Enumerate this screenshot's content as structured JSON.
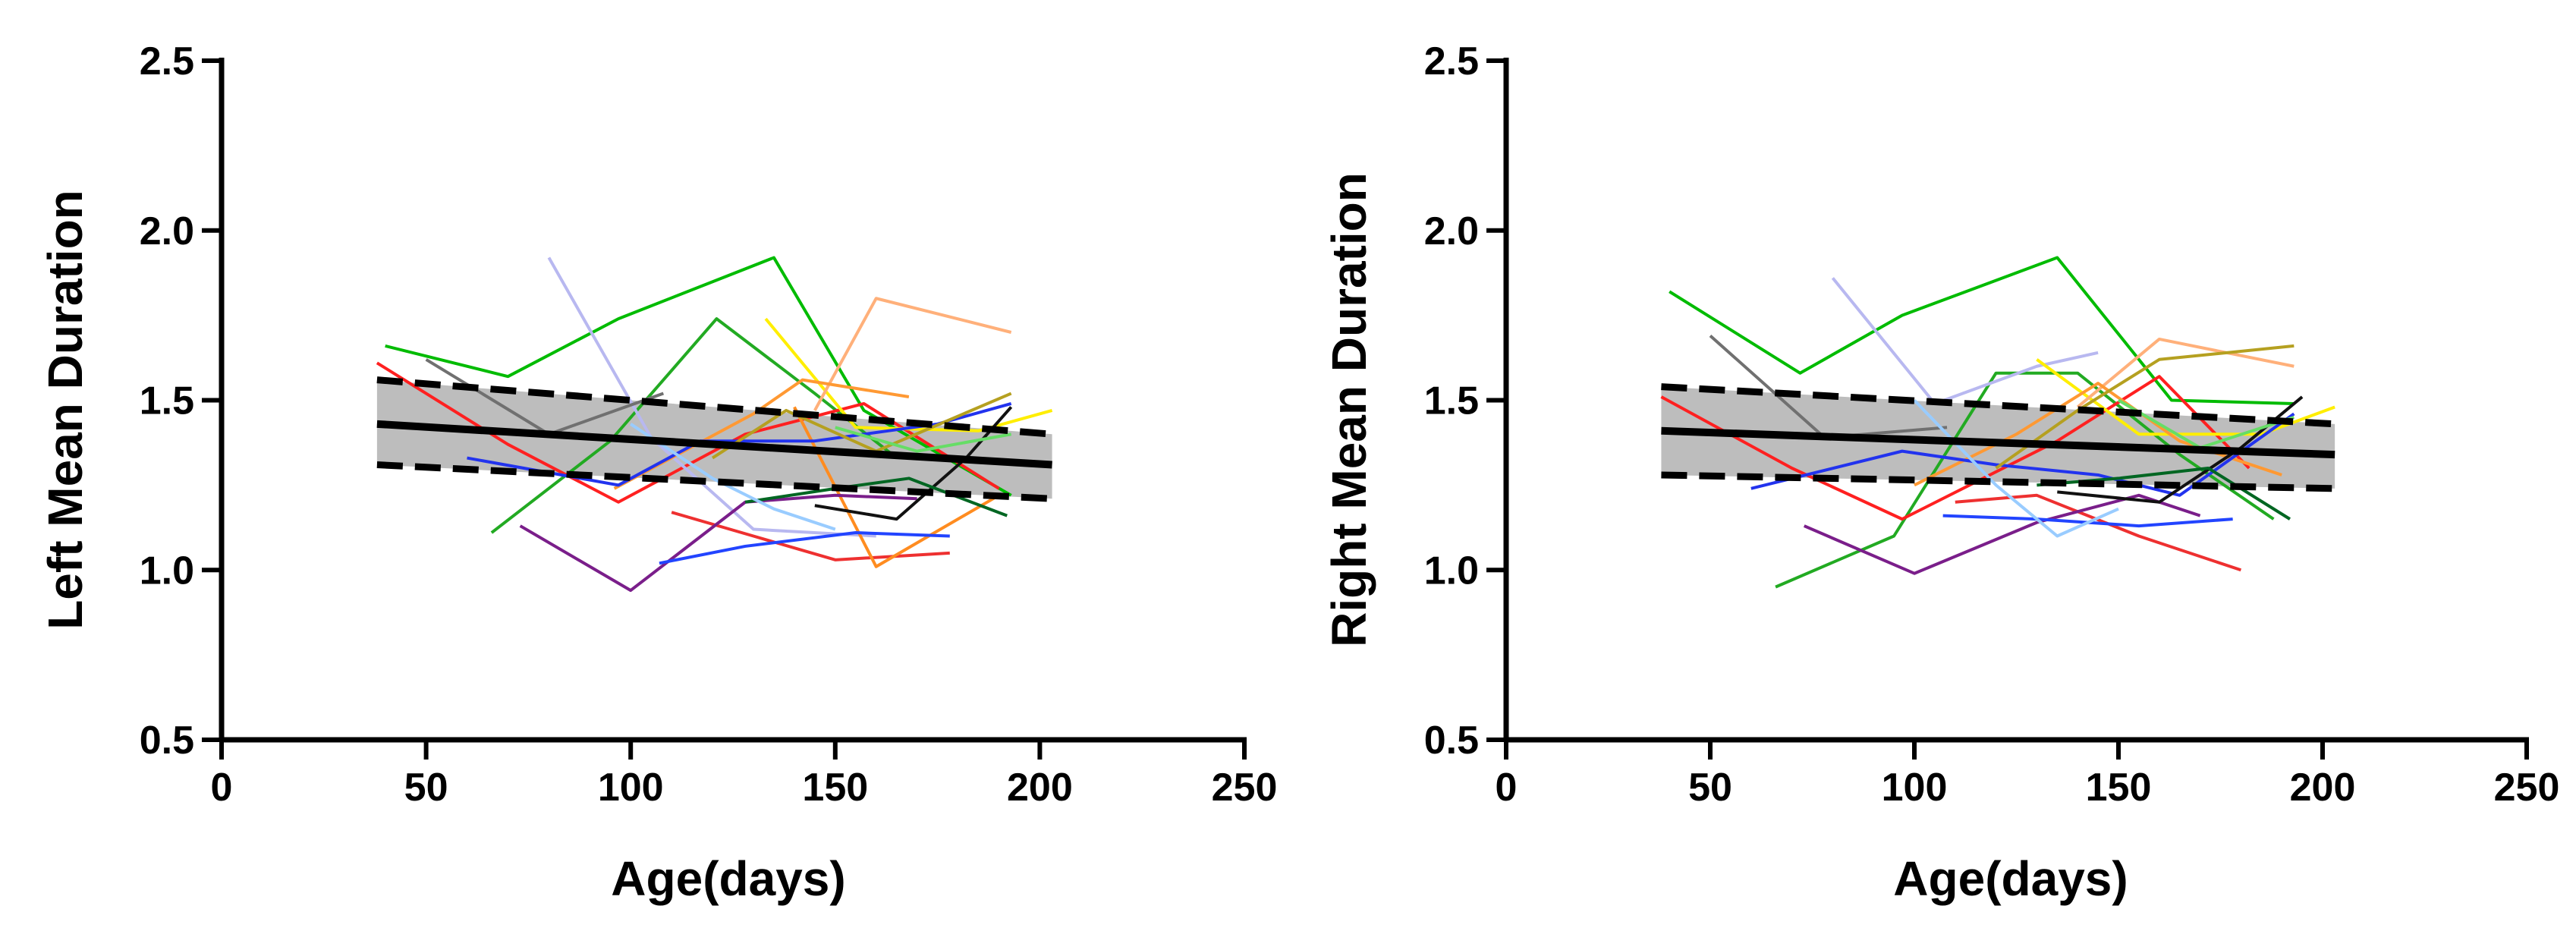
{
  "chart_data": [
    {
      "type": "line",
      "title": "",
      "xlabel": "Age(days)",
      "ylabel": "Left Mean Duration",
      "xlim": [
        0,
        250
      ],
      "ylim": [
        0.5,
        2.5
      ],
      "xticks": [
        "0",
        "50",
        "100",
        "150",
        "200",
        "250"
      ],
      "yticks": [
        "0.5",
        "1.0",
        "1.5",
        "2.0",
        "2.5"
      ],
      "regression": {
        "x": [
          38,
          203
        ],
        "fit": [
          1.43,
          1.31
        ],
        "ci_upper": [
          1.56,
          1.4
        ],
        "ci_lower": [
          1.31,
          1.21
        ]
      },
      "series": [
        {
          "name": "green",
          "color": "#00bb00",
          "x": [
            40,
            70,
            97,
            135,
            157,
            193
          ],
          "y": [
            1.66,
            1.57,
            1.74,
            1.92,
            1.47,
            1.22
          ]
        },
        {
          "name": "green-2",
          "color": "#22aa22",
          "x": [
            66,
            95,
            121,
            145,
            165
          ],
          "y": [
            1.11,
            1.38,
            1.74,
            1.52,
            1.33
          ]
        },
        {
          "name": "red",
          "color": "#ff2020",
          "x": [
            38,
            70,
            97,
            128,
            157,
            190
          ],
          "y": [
            1.61,
            1.37,
            1.2,
            1.4,
            1.49,
            1.24
          ]
        },
        {
          "name": "red-2",
          "color": "#ee3030",
          "x": [
            110,
            130,
            150,
            178
          ],
          "y": [
            1.17,
            1.1,
            1.03,
            1.05
          ]
        },
        {
          "name": "lavender",
          "color": "#b8b8f0",
          "x": [
            80,
            105,
            130,
            160
          ],
          "y": [
            1.92,
            1.39,
            1.12,
            1.1
          ]
        },
        {
          "name": "gray",
          "color": "#707070",
          "x": [
            50,
            80,
            108
          ],
          "y": [
            1.62,
            1.4,
            1.52
          ]
        },
        {
          "name": "yellow",
          "color": "#ffee00",
          "x": [
            133,
            155,
            185,
            203
          ],
          "y": [
            1.74,
            1.42,
            1.41,
            1.47
          ]
        },
        {
          "name": "peach",
          "color": "#ffb07a",
          "x": [
            145,
            160,
            193
          ],
          "y": [
            1.47,
            1.8,
            1.7
          ]
        },
        {
          "name": "orange",
          "color": "#ff9933",
          "x": [
            96,
            130,
            142,
            168
          ],
          "y": [
            1.24,
            1.46,
            1.56,
            1.51
          ]
        },
        {
          "name": "orange-2",
          "color": "#ff8c20",
          "x": [
            140,
            160,
            190
          ],
          "y": [
            1.48,
            1.01,
            1.22
          ]
        },
        {
          "name": "purple",
          "color": "#7a1e8a",
          "x": [
            73,
            100,
            128,
            150,
            170
          ],
          "y": [
            1.13,
            0.94,
            1.2,
            1.22,
            1.21
          ]
        },
        {
          "name": "blue",
          "color": "#2233ee",
          "x": [
            60,
            97,
            117,
            145,
            175,
            193
          ],
          "y": [
            1.33,
            1.25,
            1.38,
            1.38,
            1.43,
            1.49
          ]
        },
        {
          "name": "blue-2",
          "color": "#2244ff",
          "x": [
            107,
            128,
            155,
            178
          ],
          "y": [
            1.02,
            1.07,
            1.11,
            1.1
          ]
        },
        {
          "name": "black",
          "color": "#111111",
          "x": [
            145,
            165,
            182,
            193
          ],
          "y": [
            1.19,
            1.15,
            1.33,
            1.48
          ]
        },
        {
          "name": "dark-green",
          "color": "#006622",
          "x": [
            128,
            150,
            168,
            192
          ],
          "y": [
            1.2,
            1.24,
            1.27,
            1.16
          ]
        },
        {
          "name": "olive",
          "color": "#b5a020",
          "x": [
            120,
            138,
            160,
            193
          ],
          "y": [
            1.33,
            1.47,
            1.35,
            1.52
          ]
        },
        {
          "name": "light-blue",
          "color": "#99ccff",
          "x": [
            100,
            120,
            135,
            150
          ],
          "y": [
            1.43,
            1.27,
            1.18,
            1.12
          ]
        },
        {
          "name": "light-green",
          "color": "#66dd66",
          "x": [
            150,
            170,
            193
          ],
          "y": [
            1.42,
            1.35,
            1.4
          ]
        }
      ]
    },
    {
      "type": "line",
      "title": "",
      "xlabel": "Age(days)",
      "ylabel": "Right Mean Duration",
      "xlim": [
        0,
        250
      ],
      "ylim": [
        0.5,
        2.5
      ],
      "xticks": [
        "0",
        "50",
        "100",
        "150",
        "200",
        "250"
      ],
      "yticks": [
        "0.5",
        "1.0",
        "1.5",
        "2.0",
        "2.5"
      ],
      "regression": {
        "x": [
          38,
          203
        ],
        "fit": [
          1.41,
          1.34
        ],
        "ci_upper": [
          1.54,
          1.43
        ],
        "ci_lower": [
          1.28,
          1.24
        ]
      },
      "series": [
        {
          "name": "green",
          "color": "#00bb00",
          "x": [
            40,
            72,
            97,
            135,
            163,
            193
          ],
          "y": [
            1.82,
            1.58,
            1.75,
            1.92,
            1.5,
            1.49
          ]
        },
        {
          "name": "green-2",
          "color": "#22aa22",
          "x": [
            66,
            95,
            120,
            140,
            165,
            188
          ],
          "y": [
            0.95,
            1.1,
            1.58,
            1.58,
            1.34,
            1.15
          ]
        },
        {
          "name": "red",
          "color": "#ff2020",
          "x": [
            38,
            70,
            97,
            135,
            160,
            182
          ],
          "y": [
            1.51,
            1.3,
            1.15,
            1.38,
            1.57,
            1.3
          ]
        },
        {
          "name": "red-2",
          "color": "#ee3030",
          "x": [
            110,
            130,
            155,
            180
          ],
          "y": [
            1.2,
            1.22,
            1.1,
            1.0
          ]
        },
        {
          "name": "lavender",
          "color": "#b8b8f0",
          "x": [
            80,
            105,
            130,
            145
          ],
          "y": [
            1.86,
            1.49,
            1.6,
            1.64
          ]
        },
        {
          "name": "gray",
          "color": "#707070",
          "x": [
            50,
            78,
            108
          ],
          "y": [
            1.69,
            1.39,
            1.42
          ]
        },
        {
          "name": "yellow",
          "color": "#ffee00",
          "x": [
            130,
            155,
            185,
            203
          ],
          "y": [
            1.62,
            1.4,
            1.4,
            1.48
          ]
        },
        {
          "name": "peach",
          "color": "#ffb07a",
          "x": [
            140,
            160,
            193
          ],
          "y": [
            1.48,
            1.68,
            1.6
          ]
        },
        {
          "name": "orange",
          "color": "#ff9933",
          "x": [
            100,
            125,
            145,
            165,
            190
          ],
          "y": [
            1.25,
            1.4,
            1.55,
            1.38,
            1.28
          ]
        },
        {
          "name": "purple",
          "color": "#7a1e8a",
          "x": [
            73,
            100,
            130,
            155,
            170
          ],
          "y": [
            1.13,
            0.99,
            1.14,
            1.22,
            1.16
          ]
        },
        {
          "name": "blue",
          "color": "#2233ee",
          "x": [
            60,
            97,
            120,
            145,
            165,
            193
          ],
          "y": [
            1.24,
            1.35,
            1.31,
            1.28,
            1.22,
            1.46
          ]
        },
        {
          "name": "blue-2",
          "color": "#2244ff",
          "x": [
            107,
            130,
            155,
            178
          ],
          "y": [
            1.16,
            1.15,
            1.13,
            1.15
          ]
        },
        {
          "name": "black",
          "color": "#111111",
          "x": [
            135,
            160,
            180,
            195
          ],
          "y": [
            1.23,
            1.2,
            1.36,
            1.51
          ]
        },
        {
          "name": "dark-green",
          "color": "#006622",
          "x": [
            130,
            150,
            172,
            192
          ],
          "y": [
            1.25,
            1.27,
            1.3,
            1.15
          ]
        },
        {
          "name": "olive",
          "color": "#b5a020",
          "x": [
            120,
            140,
            160,
            193
          ],
          "y": [
            1.3,
            1.47,
            1.62,
            1.66
          ]
        },
        {
          "name": "light-blue",
          "color": "#99ccff",
          "x": [
            100,
            120,
            135,
            150
          ],
          "y": [
            1.5,
            1.25,
            1.1,
            1.18
          ]
        },
        {
          "name": "light-green",
          "color": "#66dd66",
          "x": [
            150,
            170,
            193
          ],
          "y": [
            1.5,
            1.36,
            1.45
          ]
        }
      ]
    }
  ]
}
